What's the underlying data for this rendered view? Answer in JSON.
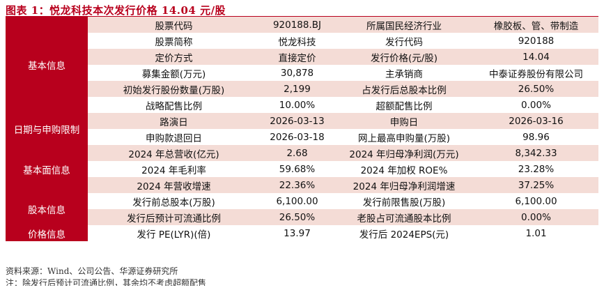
{
  "title": "图表 1：悦龙科技本次发行价格 14.04 元/股",
  "sections": [
    {
      "category": "基本信息",
      "rows": [
        [
          "股票代码",
          "920188.BJ",
          "所属国民经济行业",
          "橡胶板、管、带制造"
        ],
        [
          "股票简称",
          "悦龙科技",
          "发行代码",
          "920188"
        ],
        [
          "定价方式",
          "直接定价",
          "发行价格(元/股)",
          "14.04"
        ],
        [
          "募集金额(万元)",
          "30,878",
          "主承销商",
          "中泰证券股份有限公司"
        ],
        [
          "初始发行股份数量(万股)",
          "2,199",
          "占发行后总股本比例",
          "26.50%"
        ],
        [
          "战略配售比例",
          "10.00%",
          "超额配售比例",
          "0.00%"
        ]
      ]
    },
    {
      "category": "日期与申购限制",
      "rows": [
        [
          "路演日",
          "2026-03-13",
          "申购日",
          "2026-03-16"
        ],
        [
          "申购款退回日",
          "2026-03-18",
          "网上最高申购量(万股)",
          "98.96"
        ]
      ]
    },
    {
      "category": "基本面信息",
      "rows": [
        [
          "2024 年总营收(亿元)",
          "2.68",
          "2024 年归母净利润(万元)",
          "8,342.33"
        ],
        [
          "2024 年毛利率",
          "59.68%",
          "2024 年加权 ROE%",
          "23.28%"
        ],
        [
          "2024 年营收增速",
          "22.36%",
          "2024 年归母净利润增速",
          "37.25%"
        ]
      ]
    },
    {
      "category": "股本信息",
      "rows": [
        [
          "发行前总股本(万股)",
          "6,100.00",
          "发行前限售股(万股)",
          "6,100.00"
        ],
        [
          "发行后预计可流通比例",
          "26.50%",
          "老股占可流通股本比例",
          "0.00%"
        ]
      ]
    },
    {
      "category": "价格信息",
      "rows": [
        [
          "发行 PE(LYR)(倍)",
          "13.97",
          "发行后 2024EPS(元)",
          "1.01"
        ]
      ]
    }
  ],
  "notes": [
    "资料来源：Wind、公司公告、华源证券研究所",
    "注：除发行后预计可流通比例，其余均不考虑超额配售"
  ],
  "colors": {
    "accent": "#b8001d",
    "band": "#f4dcd6"
  }
}
